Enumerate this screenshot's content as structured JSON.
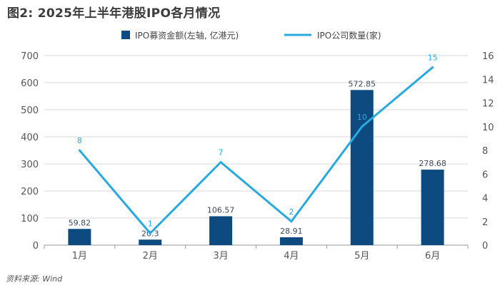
{
  "title": "图2: 2025年上半年港股IPO各月情况",
  "source": "资料来源: Wind",
  "colors": {
    "bar": "#0d4a80",
    "line": "#2aa9de",
    "grid": "#d9d9d9",
    "axis": "#999999"
  },
  "legend": {
    "position": "top-center",
    "items": [
      {
        "label": "IPO募资金额(左轴, 亿港元)",
        "shape": "square",
        "color": "#0d4a80"
      },
      {
        "label": "IPO公司数量(家)",
        "shape": "line",
        "color": "#2aa9de"
      }
    ]
  },
  "chart_data": {
    "type": "bar+line",
    "title": "图2: 2025年上半年港股IPO各月情况",
    "categories": [
      "1月",
      "2月",
      "3月",
      "4月",
      "5月",
      "6月"
    ],
    "series": [
      {
        "name": "IPO募资金额(左轴, 亿港元)",
        "type": "bar",
        "axis": "left",
        "values": [
          59.82,
          20.3,
          106.57,
          28.91,
          572.85,
          278.68
        ],
        "labels": [
          "59.82",
          "20.3",
          "106.57",
          "28.91",
          "572.85",
          "278.68"
        ]
      },
      {
        "name": "IPO公司数量(家)",
        "type": "line",
        "axis": "right",
        "values": [
          8,
          1,
          7,
          2,
          10,
          15
        ],
        "labels": [
          "8",
          "1",
          "7",
          "2",
          "10",
          "15"
        ]
      }
    ],
    "y_left": {
      "min": 0,
      "max": 700,
      "ticks": [
        0,
        100,
        200,
        300,
        400,
        500,
        600,
        700
      ]
    },
    "y_right": {
      "min": 0,
      "max": 16,
      "ticks": [
        0,
        2,
        4,
        6,
        8,
        10,
        12,
        14,
        16
      ]
    },
    "grid": true
  }
}
